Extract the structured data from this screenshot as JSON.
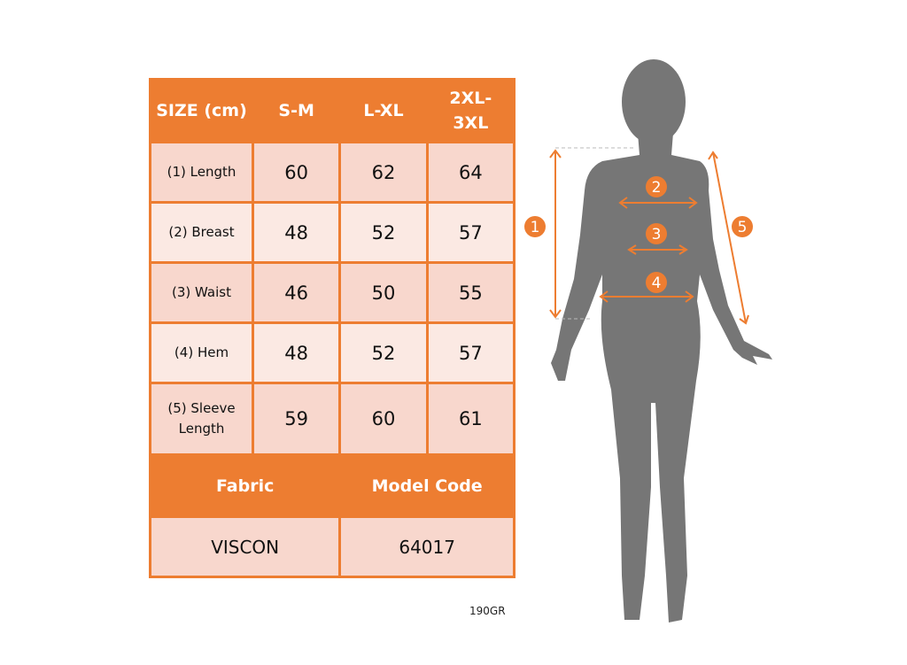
{
  "table": {
    "header": [
      "SIZE (cm)",
      "S-M",
      "L-XL",
      "2XL-3XL"
    ],
    "rows": [
      {
        "label": "(1) Length",
        "values": [
          "60",
          "62",
          "64"
        ]
      },
      {
        "label": "(2) Breast",
        "values": [
          "48",
          "52",
          "57"
        ]
      },
      {
        "label": "(3) Waist",
        "values": [
          "46",
          "50",
          "55"
        ]
      },
      {
        "label": "(4) Hem",
        "values": [
          "48",
          "52",
          "57"
        ]
      },
      {
        "label": "(5) Sleeve Length",
        "values": [
          "59",
          "60",
          "61"
        ]
      }
    ],
    "fabric_label": "Fabric",
    "model_code_label": "Model Code",
    "fabric": "VISCON",
    "model_code": "64017"
  },
  "weight_note": "190GR",
  "figure": {
    "markers": [
      "1",
      "2",
      "3",
      "4",
      "5"
    ]
  },
  "colors": {
    "accent": "#ED7D31",
    "cell_dark": "#F8D7CD",
    "cell_light": "#FBE9E3",
    "silhouette": "#767676"
  }
}
